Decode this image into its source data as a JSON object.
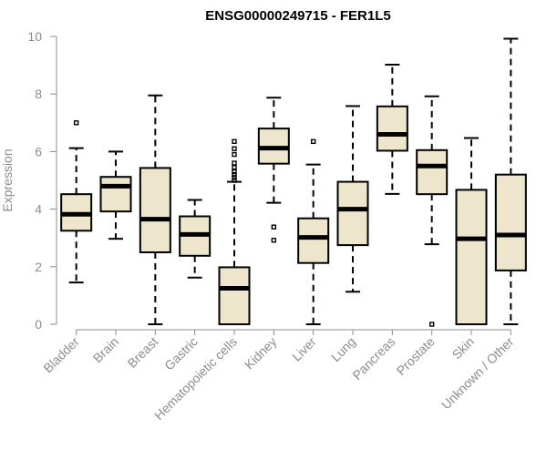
{
  "chart_data": {
    "type": "boxplot",
    "title": "ENSG00000249715 - FER1L5",
    "xlabel": "",
    "ylabel": "Expression",
    "ylim": [
      0,
      10
    ],
    "yticks": [
      0,
      2,
      4,
      6,
      8,
      10
    ],
    "grid": false,
    "colors": {
      "box_fill": "#ede6cd",
      "stroke": "#000000",
      "axis": "#8c8c8c"
    },
    "categories": [
      "Bladder",
      "Brain",
      "Breast",
      "Gastric",
      "Hematopoietic cells",
      "Kidney",
      "Liver",
      "Lung",
      "Pancreas",
      "Prostate",
      "Skin",
      "Unknown / Other"
    ],
    "boxes": [
      {
        "category": "Bladder",
        "whisker_low": 1.45,
        "q1": 3.25,
        "median": 3.82,
        "q3": 4.52,
        "whisker_high": 6.12,
        "outliers": [
          7.0
        ]
      },
      {
        "category": "Brain",
        "whisker_low": 2.97,
        "q1": 3.92,
        "median": 4.8,
        "q3": 5.12,
        "whisker_high": 6.0,
        "outliers": []
      },
      {
        "category": "Breast",
        "whisker_low": 0.0,
        "q1": 2.5,
        "median": 3.65,
        "q3": 5.43,
        "whisker_high": 7.95,
        "outliers": []
      },
      {
        "category": "Gastric",
        "whisker_low": 1.62,
        "q1": 2.38,
        "median": 3.12,
        "q3": 3.75,
        "whisker_high": 4.32,
        "outliers": []
      },
      {
        "category": "Hematopoietic cells",
        "whisker_low": 0.0,
        "q1": 0.0,
        "median": 1.25,
        "q3": 1.98,
        "whisker_high": 4.95,
        "outliers": [
          5.0,
          5.1,
          5.2,
          5.3,
          5.45,
          5.6,
          5.9,
          6.1,
          6.35
        ]
      },
      {
        "category": "Kidney",
        "whisker_low": 4.22,
        "q1": 5.58,
        "median": 6.12,
        "q3": 6.8,
        "whisker_high": 7.87,
        "outliers": [
          3.38,
          2.92
        ]
      },
      {
        "category": "Liver",
        "whisker_low": 0.0,
        "q1": 2.13,
        "median": 3.02,
        "q3": 3.68,
        "whisker_high": 5.55,
        "outliers": [
          6.35
        ]
      },
      {
        "category": "Lung",
        "whisker_low": 1.13,
        "q1": 2.75,
        "median": 4.0,
        "q3": 4.95,
        "whisker_high": 7.58,
        "outliers": []
      },
      {
        "category": "Pancreas",
        "whisker_low": 4.53,
        "q1": 6.03,
        "median": 6.6,
        "q3": 7.57,
        "whisker_high": 9.02,
        "outliers": []
      },
      {
        "category": "Prostate",
        "whisker_low": 2.78,
        "q1": 4.52,
        "median": 5.5,
        "q3": 6.05,
        "whisker_high": 7.92,
        "outliers": [
          0.0
        ]
      },
      {
        "category": "Skin",
        "whisker_low": 0.0,
        "q1": 0.0,
        "median": 2.97,
        "q3": 4.67,
        "whisker_high": 6.47,
        "outliers": []
      },
      {
        "category": "Unknown / Other",
        "whisker_low": 0.0,
        "q1": 1.87,
        "median": 3.1,
        "q3": 5.2,
        "whisker_high": 9.92,
        "outliers": []
      }
    ]
  }
}
